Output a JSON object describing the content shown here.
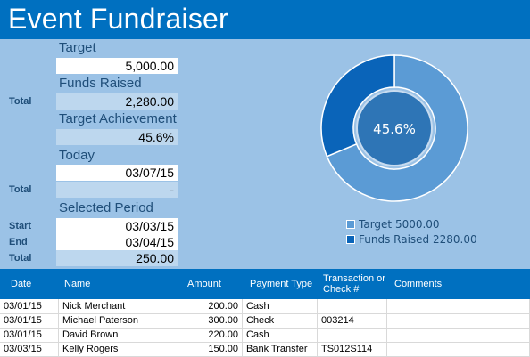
{
  "title": "Event Fundraiser",
  "target": {
    "label": "Target",
    "value": "5,000.00"
  },
  "funds_raised": {
    "label": "Funds Raised",
    "row_label": "Total",
    "value": "2,280.00"
  },
  "achievement": {
    "label": "Target Achievement",
    "value": "45.6%"
  },
  "today": {
    "label": "Today",
    "date": "03/07/15",
    "row_label": "Total",
    "total": "-"
  },
  "period": {
    "label": "Selected Period",
    "start_label": "Start",
    "start": "03/03/15",
    "end_label": "End",
    "end": "03/04/15",
    "total_label": "Total",
    "total": "250.00"
  },
  "donut": {
    "center_text": "45.6%",
    "legend": [
      "Target 5000.00",
      "Funds Raised 2280.00"
    ]
  },
  "chart_data": {
    "type": "pie",
    "variant": "donut",
    "slices": [
      {
        "label": "Target",
        "value": 5000.0,
        "color": "#5b9bd5"
      },
      {
        "label": "Funds Raised",
        "value": 2280.0,
        "color": "#0a64b9"
      }
    ],
    "center_label": "45.6%",
    "legend_position": "bottom"
  },
  "table": {
    "headers": [
      "Date",
      "Name",
      "Amount",
      "Payment Type",
      "Transaction or Check #",
      "Comments"
    ],
    "rows": [
      [
        "03/01/15",
        "Nick Merchant",
        "200.00",
        "Cash",
        "",
        ""
      ],
      [
        "03/01/15",
        "Michael Paterson",
        "300.00",
        "Check",
        "003214",
        ""
      ],
      [
        "03/01/15",
        "David Brown",
        "220.00",
        "Cash",
        "",
        ""
      ],
      [
        "03/03/15",
        "Kelly Rogers",
        "150.00",
        "Bank Transfer",
        "TS012S114",
        ""
      ]
    ]
  },
  "colors": {
    "accent": "#0070c0",
    "panel": "#9bc2e6",
    "light_cell": "#bdd7ee",
    "heading_text": "#1f4e79"
  }
}
